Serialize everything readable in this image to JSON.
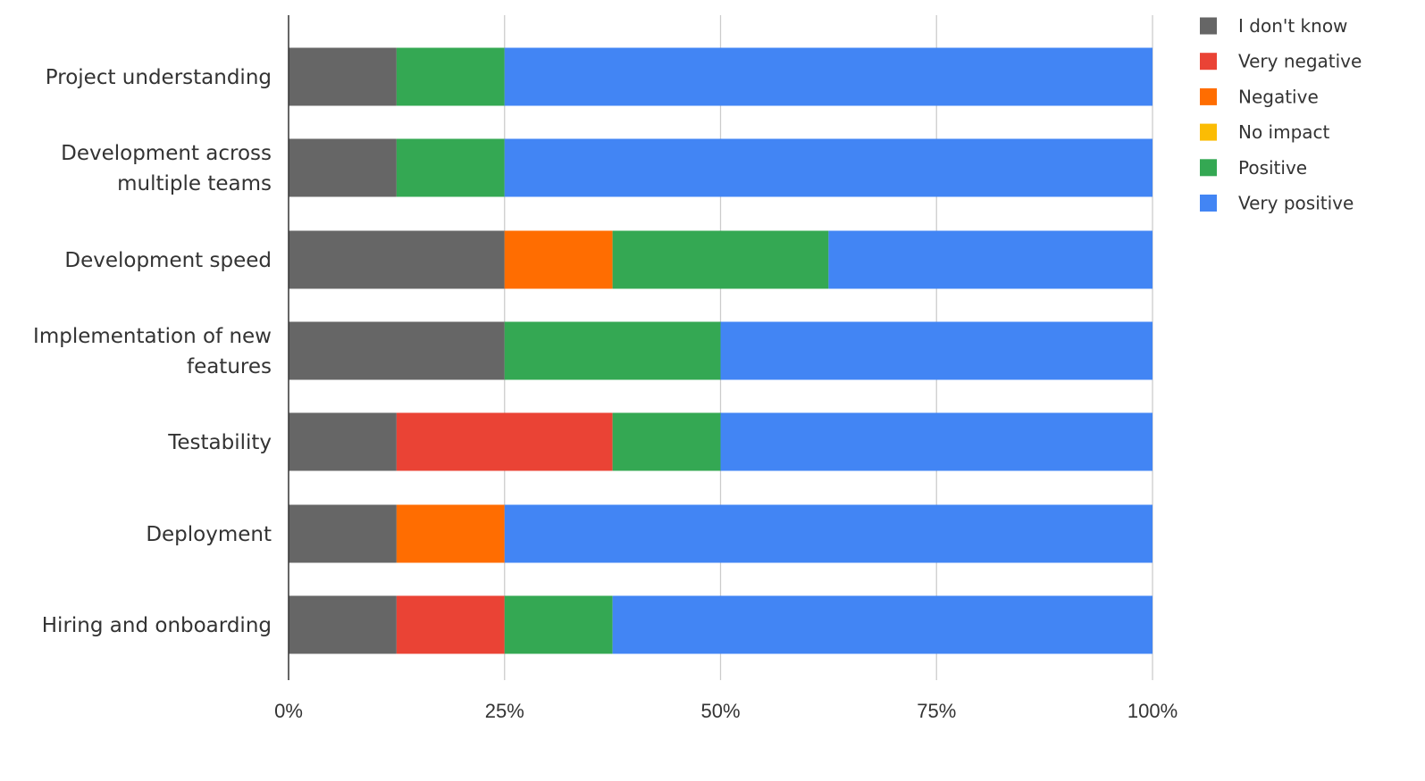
{
  "chart_data": {
    "type": "bar",
    "orientation": "horizontal",
    "stacked": "percent",
    "categories": [
      [
        "Project understanding"
      ],
      [
        "Development across",
        "multiple teams"
      ],
      [
        "Development speed"
      ],
      [
        "Implementation of new",
        "features"
      ],
      [
        "Testability"
      ],
      [
        "Deployment"
      ],
      [
        "Hiring and onboarding"
      ]
    ],
    "series": [
      {
        "name": "I don't know",
        "color": "#666666",
        "values": [
          12.5,
          12.5,
          25,
          25,
          12.5,
          12.5,
          12.5
        ]
      },
      {
        "name": "Very negative",
        "color": "#ea4335",
        "values": [
          0,
          0,
          0,
          0,
          25,
          0,
          12.5
        ]
      },
      {
        "name": "Negative",
        "color": "#ff6d01",
        "values": [
          0,
          0,
          12.5,
          0,
          0,
          12.5,
          0
        ]
      },
      {
        "name": "No impact",
        "color": "#fbbc04",
        "values": [
          0,
          0,
          0,
          0,
          0,
          0,
          0
        ]
      },
      {
        "name": "Positive",
        "color": "#34a853",
        "values": [
          12.5,
          12.5,
          25,
          25,
          12.5,
          0,
          12.5
        ]
      },
      {
        "name": "Very positive",
        "color": "#4285f4",
        "values": [
          75,
          75,
          37.5,
          50,
          50,
          75,
          62.5
        ]
      }
    ],
    "xlim": [
      0,
      100
    ],
    "xticks": [
      "0%",
      "25%",
      "50%",
      "75%",
      "100%"
    ],
    "grid": true,
    "legend_position": "right",
    "title": "",
    "xlabel": "",
    "ylabel": ""
  }
}
